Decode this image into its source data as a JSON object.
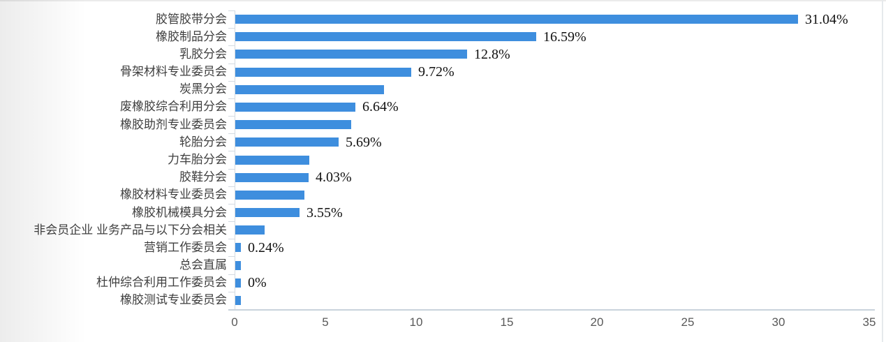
{
  "chart_data": {
    "type": "bar",
    "orientation": "horizontal",
    "categories": [
      "胶管胶带分会",
      "橡胶制品分会",
      "乳胶分会",
      "骨架材料专业委员会",
      "炭黑分会",
      "废橡胶综合利用分会",
      "橡胶助剂专业委员会",
      "轮胎分会",
      "力车胎分会",
      "胶鞋分会",
      "橡胶材料专业委员会",
      "橡胶机械模具分会",
      "非会员企业 业务产品与以下分会相关",
      "营销工作委员会",
      "总会直属",
      "杜仲综合利用工作委员会",
      "橡胶测试专业委员会"
    ],
    "values": [
      31.04,
      16.59,
      12.8,
      9.72,
      8.2,
      6.64,
      6.4,
      5.69,
      4.1,
      4.03,
      3.8,
      3.55,
      1.6,
      0.24,
      0.24,
      0.05,
      0.05
    ],
    "bar_labels": [
      "31.04%",
      "16.59%",
      "12.8%",
      "9.72%",
      "",
      "6.64%",
      "",
      "5.69%",
      "",
      "4.03%",
      "",
      "3.55%",
      "",
      "0.24%",
      "",
      "0%",
      ""
    ],
    "x_ticks": [
      0,
      5,
      10,
      15,
      20,
      25,
      30,
      35
    ],
    "xlim": [
      0,
      35
    ],
    "grid": "off",
    "legend": "none",
    "bar_color": "#3e8ede",
    "axis_line_color": "#ccd6de",
    "tick_label_color": "#595959",
    "category_label_color": "#3f3f3f",
    "data_label_color": "#111111"
  }
}
